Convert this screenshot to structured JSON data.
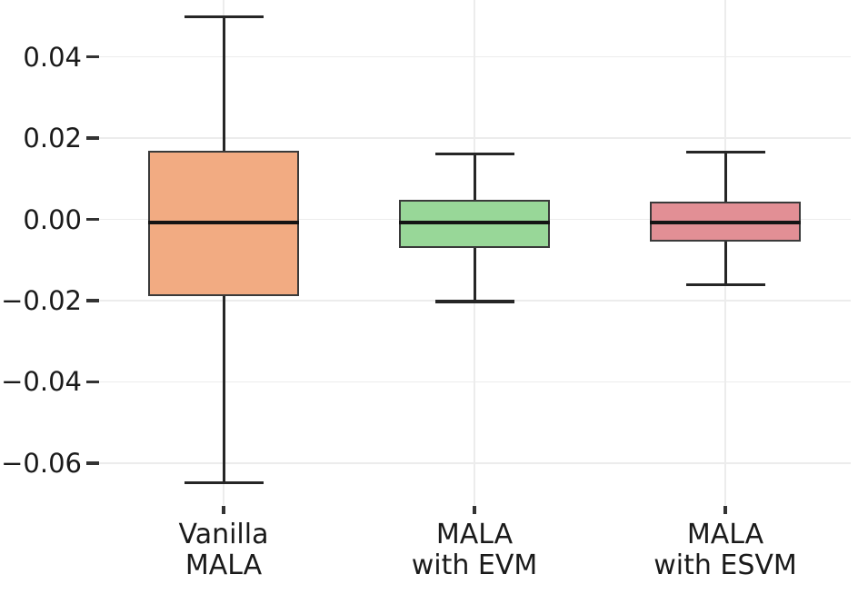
{
  "chart_data": {
    "type": "box",
    "categories": [
      {
        "id": "vanilla-mala",
        "label_lines": [
          "Vanilla",
          "MALA"
        ],
        "fill": "#F2AB82",
        "stats": {
          "whislo": -0.0648,
          "q1": -0.0187,
          "med": -0.0008,
          "q3": 0.0167,
          "whishi": 0.0499
        }
      },
      {
        "id": "mala-with-evm",
        "label_lines": [
          "MALA",
          "with EVM"
        ],
        "fill": "#98D798",
        "stats": {
          "whislo": -0.0202,
          "q1": -0.0068,
          "med": -0.0008,
          "q3": 0.0046,
          "whishi": 0.0161
        }
      },
      {
        "id": "mala-with-esvm",
        "label_lines": [
          "MALA",
          "with ESVM"
        ],
        "fill": "#E28F95",
        "stats": {
          "whislo": -0.0161,
          "q1": -0.0052,
          "med": -0.0008,
          "q3": 0.0041,
          "whishi": 0.0166
        }
      }
    ],
    "yticks": [
      {
        "value": 0.04,
        "label": "0.04"
      },
      {
        "value": 0.02,
        "label": "0.02"
      },
      {
        "value": 0.0,
        "label": "0.00"
      },
      {
        "value": -0.02,
        "label": "−0.02"
      },
      {
        "value": -0.04,
        "label": "−0.04"
      },
      {
        "value": -0.06,
        "label": "−0.06"
      }
    ],
    "ylim": [
      -0.0703,
      0.054
    ],
    "grid": true,
    "legend": false,
    "colors": {
      "grid": "#ECECEC",
      "tick": "#333333",
      "text": "#1A1A1A",
      "whisker": "#262626",
      "median": "#141414",
      "box_border": "#3A3A3A",
      "background": "#FFFFFF"
    }
  }
}
